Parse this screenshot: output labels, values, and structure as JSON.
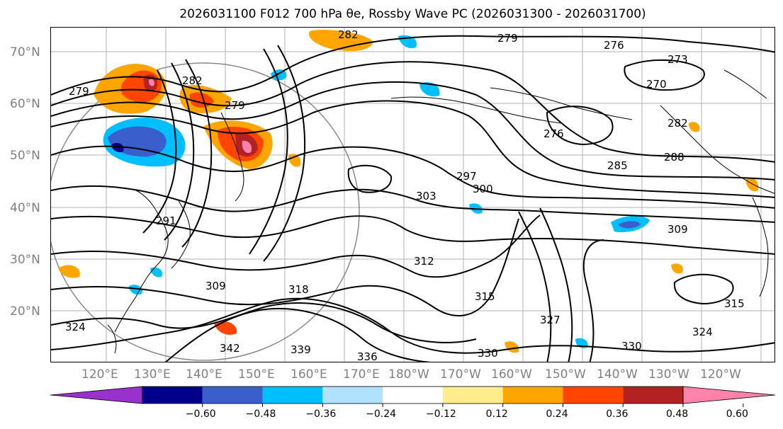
{
  "title": "2026031100 F012 700 hPa θe, Rossby Wave PC (2026031300 - 2026031700)",
  "lat_labels": [
    "70°N",
    "60°N",
    "50°N",
    "40°N",
    "30°N",
    "20°N"
  ],
  "lon_labels": [
    "120°E",
    "130°E",
    "140°E",
    "150°E",
    "160°E",
    "170°E",
    "180°W",
    "170°W",
    "160°W",
    "150°W",
    "140°W",
    "130°W",
    "120°W"
  ],
  "colorbar": {
    "ticks": [
      "−0.60",
      "−0.48",
      "−0.36",
      "−0.24",
      "−0.12",
      "0.12",
      "0.24",
      "0.36",
      "0.48",
      "0.60"
    ],
    "colors": [
      "#9932cc",
      "#00008b",
      "#3a5fcd",
      "#00bfff",
      "#b0e2ff",
      "#ffffff",
      "#ffec8b",
      "#ffa500",
      "#ff4500",
      "#b22222",
      "#ff82ab"
    ]
  },
  "contour_labels": [
    "279",
    "276",
    "273",
    "270",
    "282",
    "282",
    "279",
    "279",
    "276",
    "282",
    "288",
    "285",
    "297",
    "300",
    "303",
    "291",
    "309",
    "312",
    "318",
    "309",
    "315",
    "315",
    "324",
    "330",
    "330",
    "336",
    "339",
    "342",
    "324",
    "327"
  ]
}
